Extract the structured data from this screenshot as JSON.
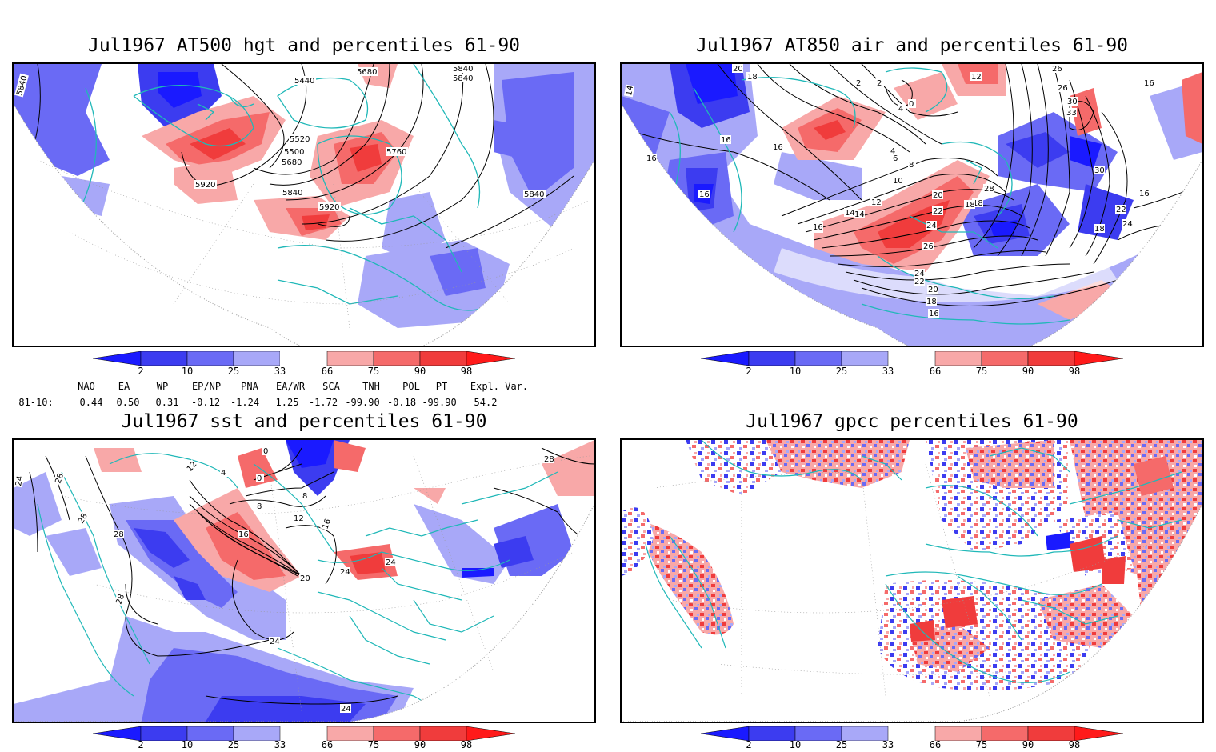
{
  "panels": {
    "p1": {
      "title": "Jul1967 AT500 hgt and percentiles 61-90",
      "contour_labels": [
        "5840",
        "5440",
        "5680",
        "5840",
        "5840",
        "5520",
        "5500",
        "5680",
        "5760",
        "5920",
        "5840",
        "5920",
        "5840"
      ]
    },
    "p2": {
      "title": "Jul1967 AT850 air and percentiles 61-90",
      "contour_labels": [
        "20",
        "18",
        "14",
        "2",
        "4",
        "12",
        "26",
        "16",
        "26",
        "30",
        "33",
        "16",
        "16",
        "16",
        "16",
        "4",
        "2",
        "0",
        "6",
        "8",
        "10",
        "12",
        "14",
        "16",
        "18",
        "20",
        "22",
        "24",
        "26",
        "28",
        "30",
        "24",
        "22",
        "18",
        "16",
        "14",
        "16",
        "18",
        "24",
        "22",
        "20",
        "18",
        "16"
      ]
    },
    "p3": {
      "title": "Jul1967 sst and percentiles 61-90",
      "contour_labels": [
        "24",
        "28",
        "28",
        "28",
        "12",
        "4",
        "0",
        "0",
        "8",
        "8",
        "12",
        "16",
        "16",
        "20",
        "24",
        "24",
        "24",
        "28",
        "24",
        "28"
      ]
    },
    "p4": {
      "title": "Jul1967 gpcc percentiles 61-90"
    }
  },
  "colorbar": {
    "labels": [
      "2",
      "10",
      "25",
      "33",
      "66",
      "75",
      "90",
      "98"
    ],
    "colors": [
      "#1a1aff",
      "#3c3cf0",
      "#6a6af5",
      "#a8a8f8",
      "#ffffff",
      "#f8a8a8",
      "#f56a6a",
      "#f03c3c",
      "#ff1a1a"
    ]
  },
  "indices": {
    "headers": [
      "NAO",
      "EA",
      "WP",
      "EP/NP",
      "PNA",
      "EA/WR",
      "SCA",
      "TNH",
      "POL",
      "PT",
      "Expl. Var."
    ],
    "row_label": "81-10:",
    "values": [
      "0.44",
      "0.50",
      "0.31",
      "-0.12",
      "-1.24",
      "1.25",
      "-1.72",
      "-99.90",
      "-0.18",
      "-99.90",
      "54.2"
    ]
  },
  "colors": {
    "coast": "#20b8b8",
    "pos": "#f03c3c",
    "neg": "#3c3cf0"
  }
}
